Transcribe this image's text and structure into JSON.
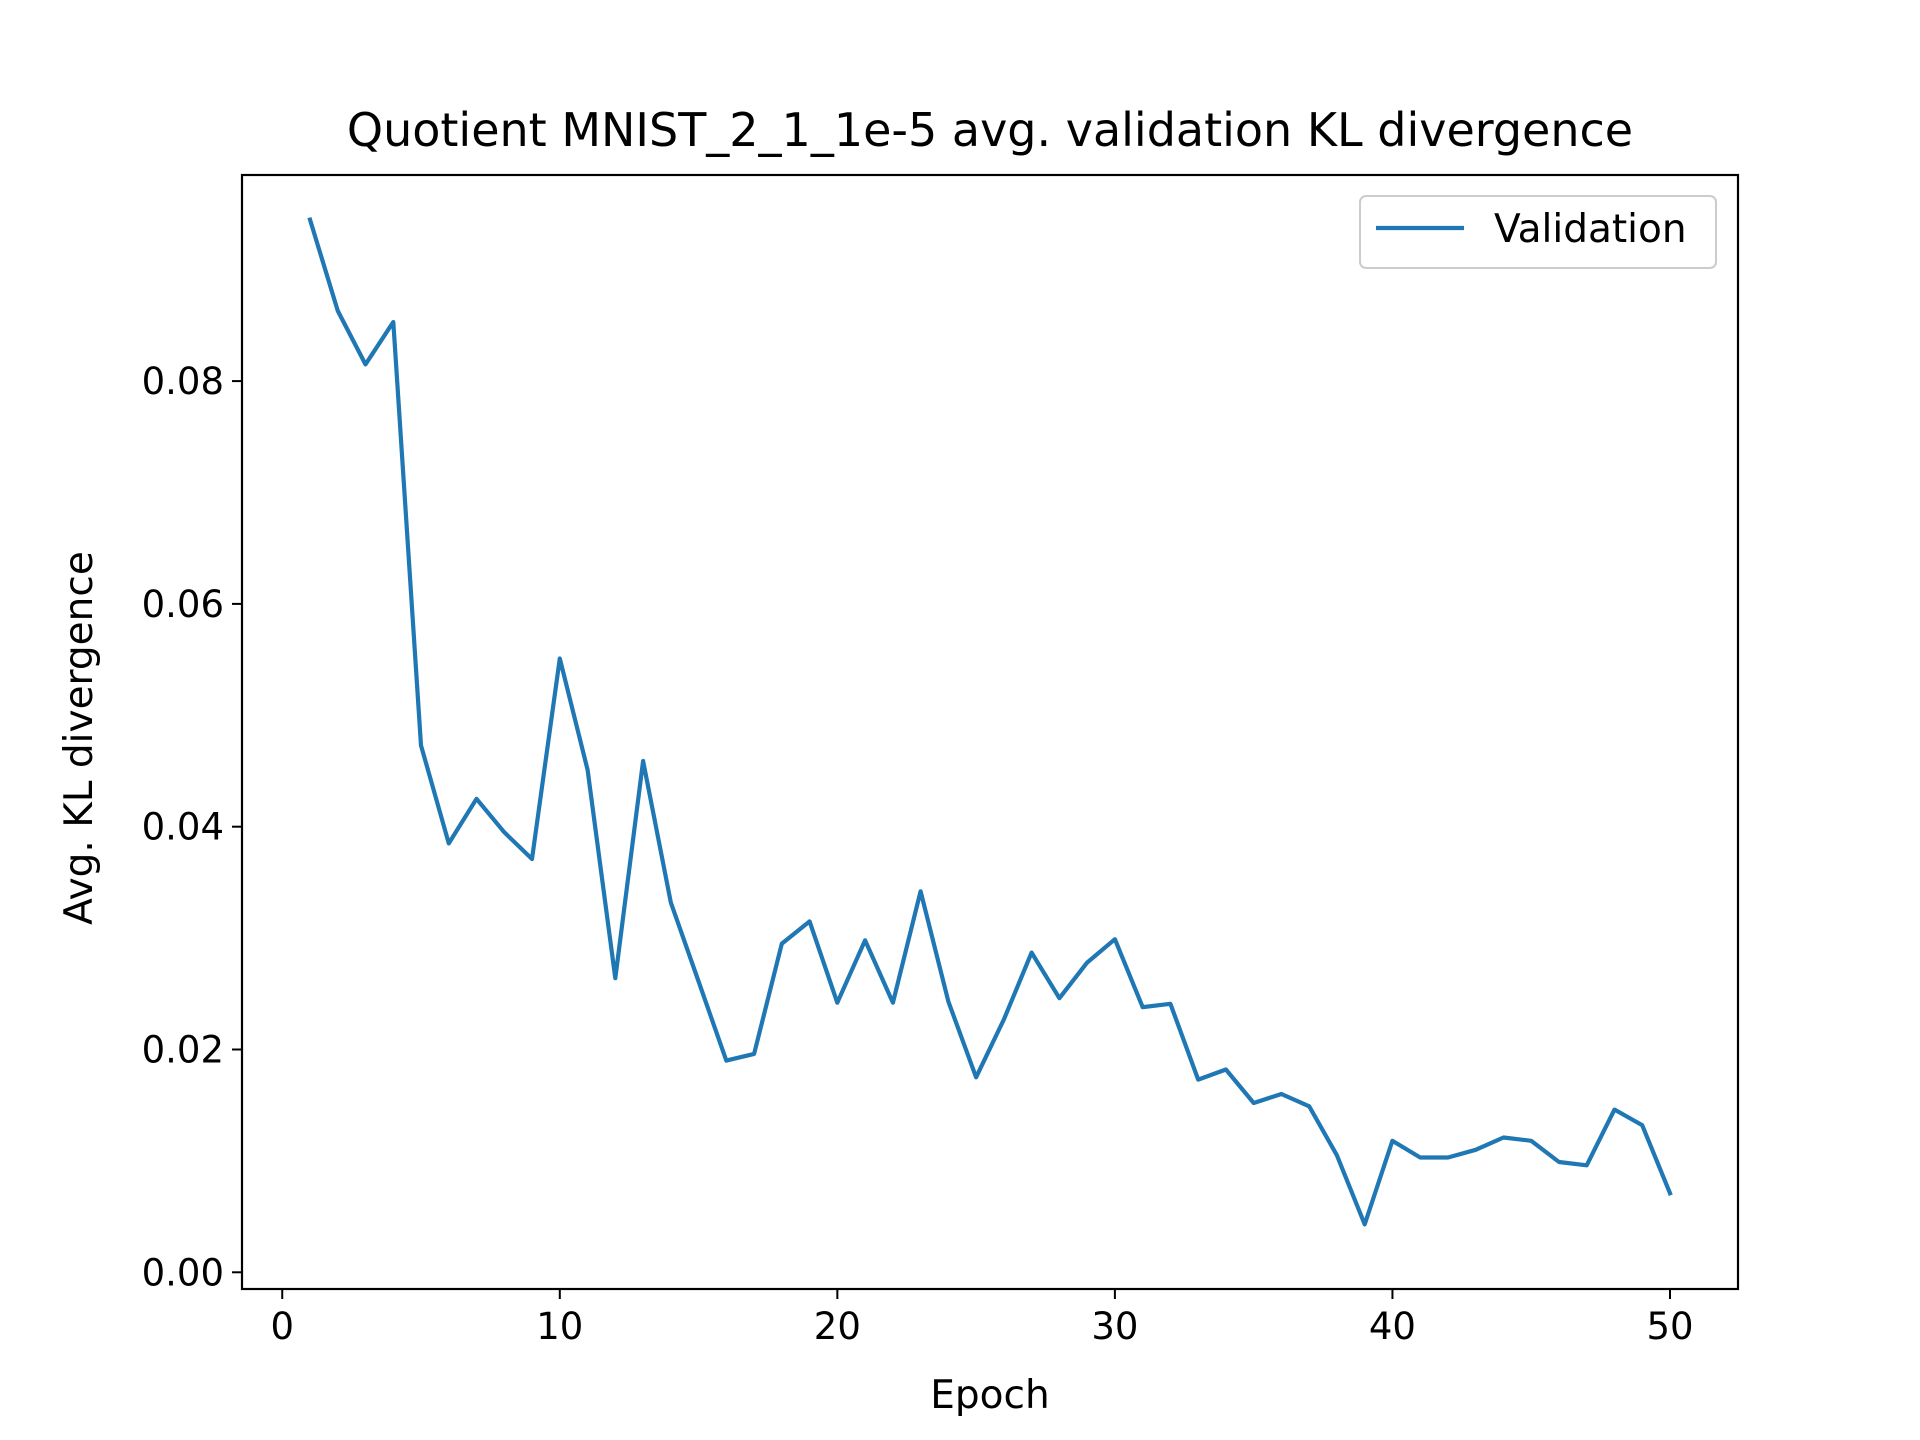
{
  "chart_data": {
    "type": "line",
    "title": "Quotient MNIST_2_1_1e-5 avg. validation KL divergence",
    "xlabel": "Epoch",
    "ylabel": "Avg. KL divergence",
    "xlim": [
      -1.45,
      52.45
    ],
    "ylim": [
      -0.0015,
      0.0985
    ],
    "x_ticks": [
      0,
      10,
      20,
      30,
      40,
      50
    ],
    "x_tick_labels": [
      "0",
      "10",
      "20",
      "30",
      "40",
      "50"
    ],
    "y_ticks": [
      0.0,
      0.02,
      0.04,
      0.06,
      0.08
    ],
    "y_tick_labels": [
      "0.00",
      "0.02",
      "0.04",
      "0.06",
      "0.08"
    ],
    "grid": false,
    "legend_position": "top-right",
    "series": [
      {
        "name": "Validation",
        "color": "#1f77b4",
        "x": [
          1,
          2,
          3,
          4,
          5,
          6,
          7,
          8,
          9,
          10,
          11,
          12,
          13,
          14,
          15,
          16,
          17,
          18,
          19,
          20,
          21,
          22,
          23,
          24,
          25,
          26,
          27,
          28,
          29,
          30,
          31,
          32,
          33,
          34,
          35,
          36,
          37,
          38,
          39,
          40,
          41,
          42,
          43,
          44,
          45,
          46,
          47,
          48,
          49,
          50
        ],
        "y": [
          0.0945,
          0.0863,
          0.0815,
          0.0853,
          0.0473,
          0.0385,
          0.0425,
          0.0395,
          0.0371,
          0.0551,
          0.0451,
          0.0264,
          0.0459,
          0.0332,
          0.0261,
          0.019,
          0.0196,
          0.0295,
          0.0315,
          0.0242,
          0.0298,
          0.0242,
          0.0342,
          0.0243,
          0.0175,
          0.0227,
          0.0287,
          0.0246,
          0.0278,
          0.0299,
          0.0238,
          0.0241,
          0.0173,
          0.0182,
          0.0152,
          0.016,
          0.0149,
          0.0105,
          0.0043,
          0.0118,
          0.0103,
          0.0103,
          0.011,
          0.0121,
          0.0118,
          0.0099,
          0.0096,
          0.0146,
          0.0132,
          0.0071
        ]
      }
    ]
  }
}
